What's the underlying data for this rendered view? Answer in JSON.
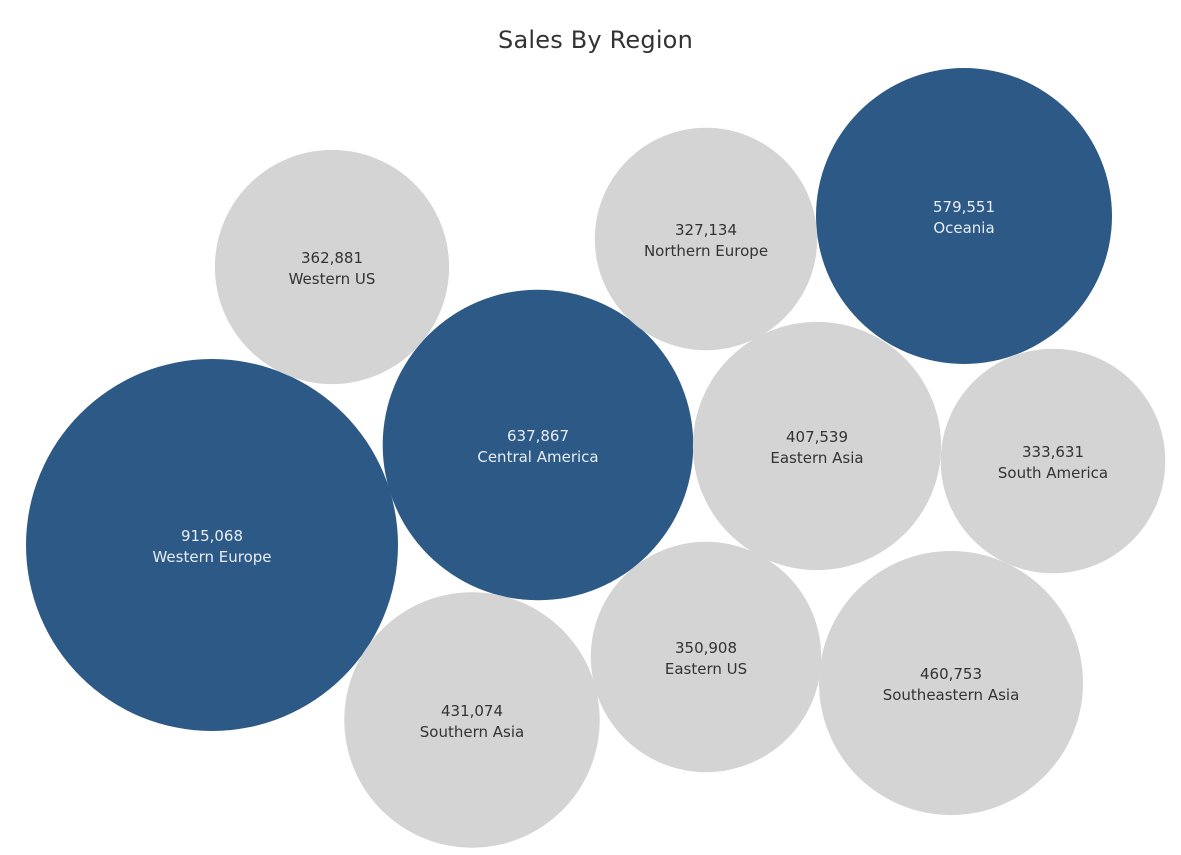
{
  "chart_data": {
    "type": "bubble",
    "title": "Sales By Region",
    "highlight_color": "#2c5985",
    "base_color": "#d4d4d4",
    "highlight_text_color": "#e8edf3",
    "base_text_color": "#333333",
    "value_format": "comma",
    "points": [
      {
        "label": "Western Europe",
        "value": 915068,
        "highlighted": true
      },
      {
        "label": "Central America",
        "value": 637867,
        "highlighted": true
      },
      {
        "label": "Oceania",
        "value": 579551,
        "highlighted": true
      },
      {
        "label": "Southeastern Asia",
        "value": 460753,
        "highlighted": false
      },
      {
        "label": "Southern Asia",
        "value": 431074,
        "highlighted": false
      },
      {
        "label": "Eastern Asia",
        "value": 407539,
        "highlighted": false
      },
      {
        "label": "Western US",
        "value": 362881,
        "highlighted": false
      },
      {
        "label": "Eastern US",
        "value": 350908,
        "highlighted": false
      },
      {
        "label": "South America",
        "value": 333631,
        "highlighted": false
      },
      {
        "label": "Northern Europe",
        "value": 327134,
        "highlighted": false
      }
    ]
  }
}
